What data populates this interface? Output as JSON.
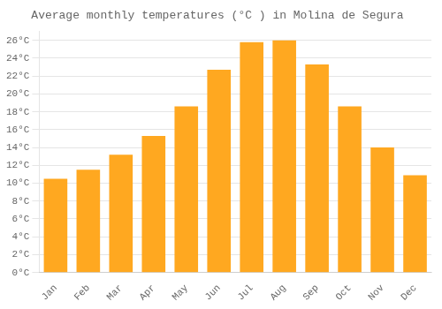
{
  "chart_data": {
    "type": "bar",
    "title": "Average monthly temperatures (°C ) in Molina de Segura",
    "categories": [
      "Jan",
      "Feb",
      "Mar",
      "Apr",
      "May",
      "Jun",
      "Jul",
      "Aug",
      "Sep",
      "Oct",
      "Nov",
      "Dec"
    ],
    "values": [
      10.5,
      11.5,
      13.2,
      15.3,
      18.6,
      22.7,
      25.8,
      26.0,
      23.3,
      18.6,
      14.0,
      10.9
    ],
    "color": "#FFA820",
    "ylim": [
      0,
      27
    ],
    "yticks": [
      {
        "value": 0,
        "label": "0°C"
      },
      {
        "value": 2,
        "label": "2°C"
      },
      {
        "value": 4,
        "label": "4°C"
      },
      {
        "value": 6,
        "label": "6°C"
      },
      {
        "value": 8,
        "label": "8°C"
      },
      {
        "value": 10,
        "label": "10°C"
      },
      {
        "value": 12,
        "label": "12°C"
      },
      {
        "value": 14,
        "label": "14°C"
      },
      {
        "value": 16,
        "label": "16°C"
      },
      {
        "value": 18,
        "label": "18°C"
      },
      {
        "value": 20,
        "label": "20°C"
      },
      {
        "value": 22,
        "label": "22°C"
      },
      {
        "value": 24,
        "label": "24°C"
      },
      {
        "value": 26,
        "label": "26°C"
      }
    ],
    "grid": true
  }
}
